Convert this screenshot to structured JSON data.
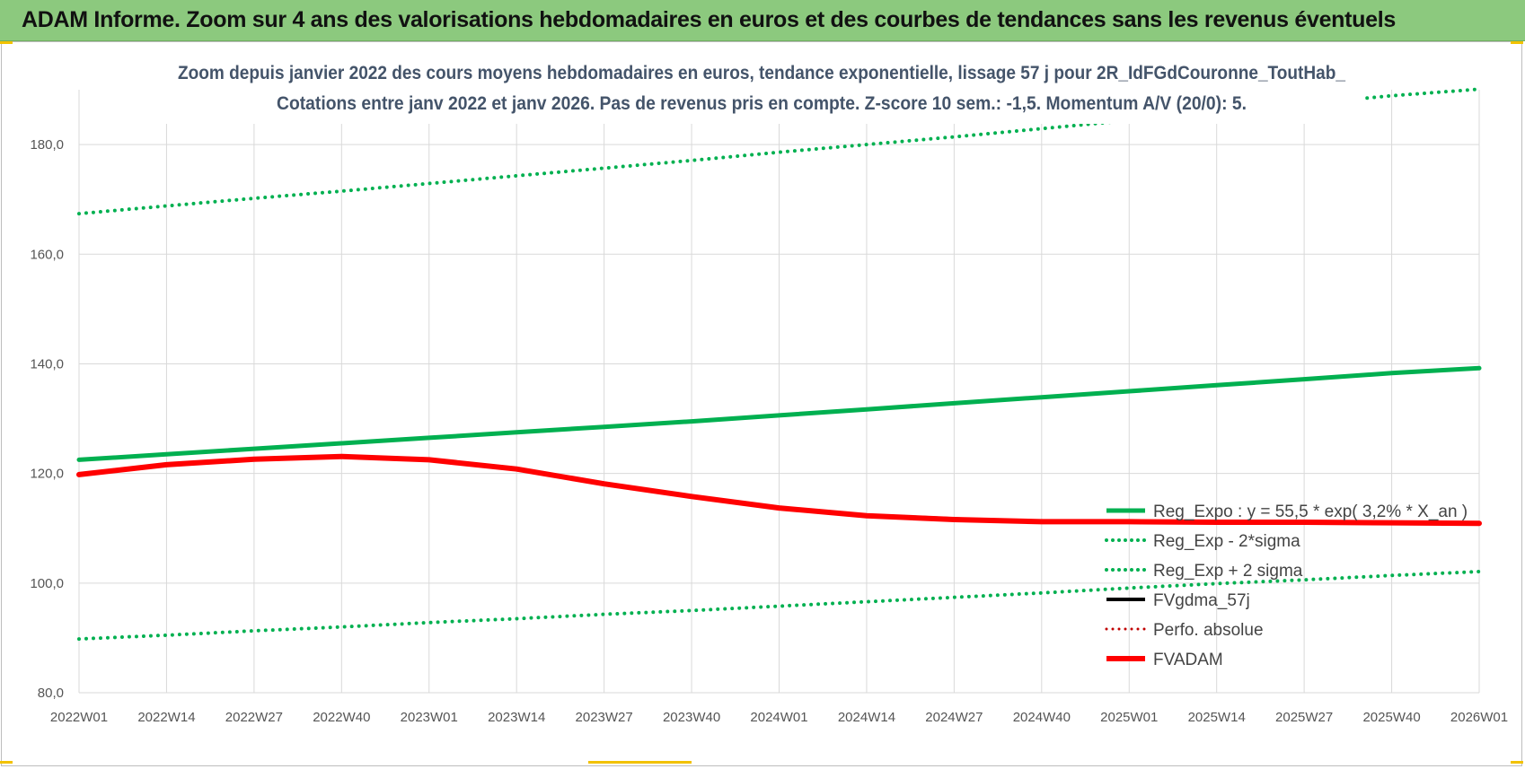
{
  "banner": {
    "title": "ADAM Informe. Zoom sur 4 ans des valorisations hebdomadaires en euros et des courbes de tendances sans les revenus éventuels"
  },
  "colors": {
    "banner_bg": "#8cc97e",
    "trend_green": "#00b050",
    "adam_red": "#ff0000",
    "perf_red": "#c00000",
    "black": "#000000",
    "grid": "#d9d9d9",
    "title_text": "#44546a"
  },
  "chart_data": {
    "type": "line",
    "title_lines": [
      "Zoom depuis janvier 2022 des cours moyens hebdomadaires en euros, tendance exponentielle, lissage 57 j pour 2R_IdFGdCouronne_ToutHab_",
      "Cotations entre janv 2022 et janv 2026. Pas de revenus pris en compte. Z-score 10 sem.: -1,5. Momentum A/V (20/0): 5."
    ],
    "x_ticks": [
      "2022W01",
      "2022W14",
      "2022W27",
      "2022W40",
      "2023W01",
      "2023W14",
      "2023W27",
      "2023W40",
      "2024W01",
      "2024W14",
      "2024W27",
      "2024W40",
      "2025W01",
      "2025W14",
      "2025W27",
      "2025W40",
      "2026W01"
    ],
    "y_ticks": [
      "80,0",
      "100,0",
      "120,0",
      "140,0",
      "160,0",
      "180,0"
    ],
    "ylim": [
      80,
      190
    ],
    "grid": true,
    "legend_position": "right",
    "series": [
      {
        "name": "Reg_Expo : y = 55,5 * exp( 3,2% * X_an )",
        "style": "solid",
        "color": "#00b050",
        "width": 5,
        "values": [
          122.5,
          123.5,
          124.5,
          125.5,
          126.5,
          127.5,
          128.5,
          129.5,
          130.6,
          131.7,
          132.8,
          133.9,
          135.0,
          136.1,
          137.2,
          138.3,
          139.2
        ]
      },
      {
        "name": "Reg_Exp - 2*sigma",
        "style": "dotted",
        "color": "#00b050",
        "width": 4,
        "values": [
          89.8,
          90.5,
          91.3,
          92.0,
          92.8,
          93.5,
          94.3,
          95.0,
          95.8,
          96.6,
          97.4,
          98.2,
          99.1,
          99.9,
          100.6,
          101.4,
          102.1
        ]
      },
      {
        "name": "Reg_Exp + 2 sigma",
        "style": "dotted",
        "color": "#00b050",
        "width": 4,
        "values": [
          167.4,
          168.8,
          170.2,
          171.5,
          172.9,
          174.3,
          175.7,
          177.1,
          178.6,
          180.0,
          181.4,
          182.9,
          184.4,
          185.9,
          187.4,
          188.9,
          190.1
        ]
      },
      {
        "name": "FVgdma_57j",
        "style": "solid",
        "color": "#000000",
        "width": 4,
        "values": [
          119.8,
          121.5,
          122.7,
          123.0,
          122.6,
          120.9,
          118.2,
          115.8,
          113.7,
          112.4,
          111.7,
          111.2,
          111.1,
          111.1,
          111.0,
          111.0,
          110.9
        ]
      },
      {
        "name": "Perfo. absolue",
        "style": "dotted",
        "color": "#c00000",
        "width": 3,
        "values": []
      },
      {
        "name": "FVADAM",
        "style": "solid",
        "color": "#ff0000",
        "width": 6,
        "values": [
          119.8,
          121.6,
          122.6,
          123.1,
          122.5,
          120.8,
          118.1,
          115.8,
          113.7,
          112.3,
          111.6,
          111.2,
          111.2,
          111.1,
          111.1,
          111.0,
          110.9
        ]
      }
    ]
  }
}
